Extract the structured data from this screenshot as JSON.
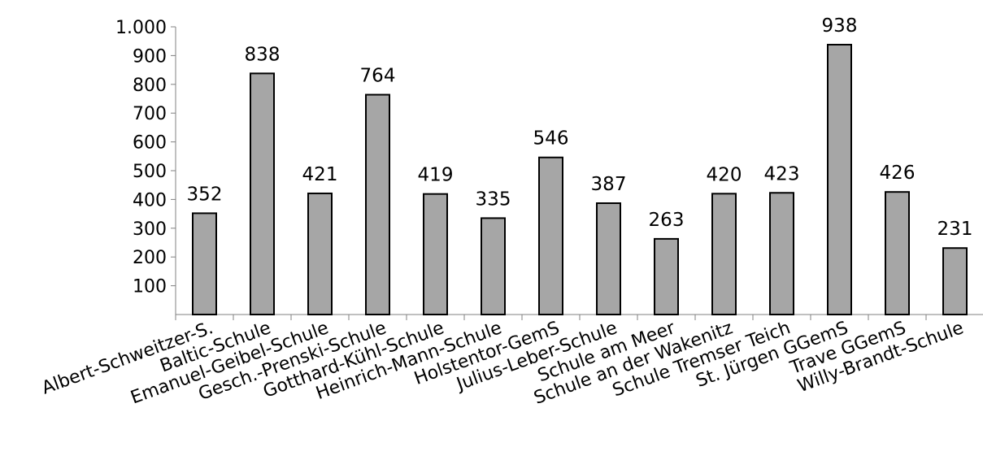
{
  "chart_data": {
    "type": "bar",
    "categories": [
      "Albert-Schweitzer-S.",
      "Baltic-Schule",
      "Emanuel-Geibel-Schule",
      "Gesch.-Prenski-Schule",
      "Gotthard-Kühl-Schule",
      "Heinrich-Mann-Schule",
      "Holstentor-GemS",
      "Julius-Leber-Schule",
      "Schule am Meer",
      "Schule an der Wakenitz",
      "Schule Tremser Teich",
      "St. Jürgen GGemS",
      "Trave GGemS",
      "Willy-Brandt-Schule"
    ],
    "values": [
      352,
      838,
      421,
      764,
      419,
      335,
      546,
      387,
      263,
      420,
      423,
      938,
      426,
      231
    ],
    "value_labels": [
      "352",
      "838",
      "421",
      "764",
      "419",
      "335",
      "546",
      "387",
      "263",
      "420",
      "423",
      "938",
      "426",
      "231"
    ],
    "y_ticks": [
      100,
      200,
      300,
      400,
      500,
      600,
      700,
      800,
      900,
      1000
    ],
    "y_tick_labels": [
      "100",
      "200",
      "300",
      "400",
      "500",
      "600",
      "700",
      "800",
      "900",
      "1.000"
    ],
    "ylim": [
      0,
      1000
    ],
    "title": "",
    "xlabel": "",
    "ylabel": "",
    "grid": false,
    "bar_color": "#a6a6a6",
    "bar_edge_color": "#000000",
    "axis_color": "#808080"
  }
}
